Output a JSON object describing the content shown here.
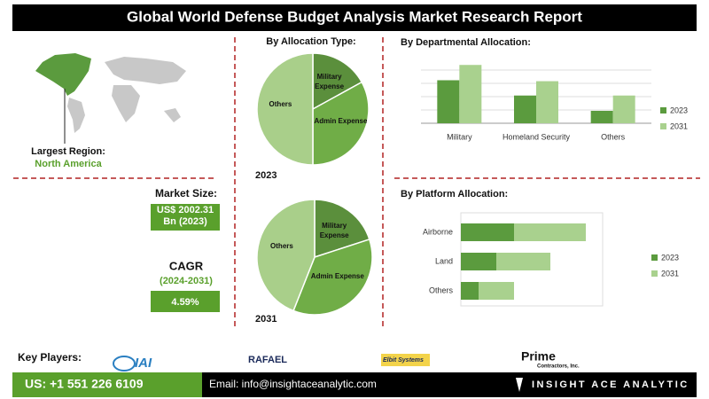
{
  "header": {
    "title": "Global World Defense Budget Analysis Market Research Report"
  },
  "region": {
    "label": "Largest Region:",
    "value": "North America"
  },
  "market_size": {
    "label": "Market Size:",
    "value": "US$ 2002.31 Bn (2023)"
  },
  "cagr": {
    "label": "CAGR",
    "period": "(2024-2031)",
    "value": "4.59%"
  },
  "key_players": {
    "label": "Key Players:",
    "logos": [
      "IAI",
      "RAFAEL",
      "Elbit Systems",
      "Prime",
      "Contractors, Inc."
    ]
  },
  "footer": {
    "phone": "US: +1 551 226 6109",
    "email": "Email: info@insightaceanalytic.com",
    "brand": "INSIGHT ACE ANALYTIC"
  },
  "chart_data": [
    {
      "type": "pie",
      "title": "By  Allocation Type:",
      "subtitle": "2023",
      "categories": [
        "Military Expense",
        "Admin Expense",
        "Others"
      ],
      "values": [
        17,
        33,
        50
      ],
      "colors": [
        "#5b8f3c",
        "#70ad47",
        "#a9cf8a"
      ]
    },
    {
      "type": "pie",
      "subtitle": "2031",
      "categories": [
        "Military Expense",
        "Admin Expense",
        "Others"
      ],
      "values": [
        20,
        36,
        44
      ],
      "colors": [
        "#5b8f3c",
        "#70ad47",
        "#a9cf8a"
      ]
    },
    {
      "type": "bar",
      "title": "By Departmental Allocation:",
      "categories": [
        "Military",
        "Homeland Security",
        "Others"
      ],
      "series": [
        {
          "name": "2023",
          "color": "#5b9b3e",
          "values": [
            45,
            29,
            13
          ]
        },
        {
          "name": "2031",
          "color": "#a9d18e",
          "values": [
            61,
            44,
            29
          ]
        }
      ],
      "ylim": [
        0,
        64
      ],
      "grid": true
    },
    {
      "type": "stacked-bar-horizontal",
      "title": "By Platform Allocation:",
      "categories": [
        "Airborne",
        "Land",
        "Others"
      ],
      "series": [
        {
          "name": "2023",
          "color": "#5b9b3e",
          "values": [
            60,
            40,
            20
          ]
        },
        {
          "name": "2031",
          "color": "#a9d18e",
          "values": [
            81,
            61,
            40
          ]
        }
      ],
      "xlim": [
        0,
        160
      ]
    }
  ]
}
